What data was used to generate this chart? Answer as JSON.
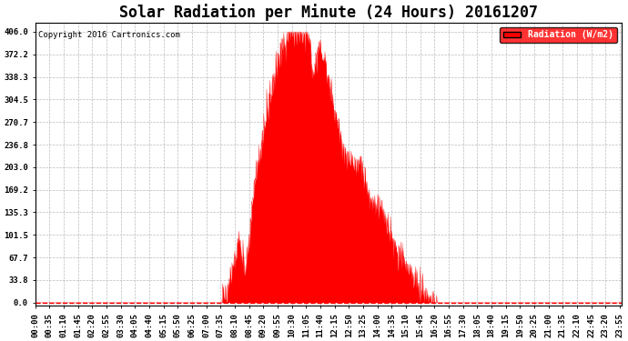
{
  "title": "Solar Radiation per Minute (24 Hours) 20161207",
  "copyright_text": "Copyright 2016 Cartronics.com",
  "legend_label": "Radiation (W/m2)",
  "yticks": [
    0.0,
    33.8,
    67.7,
    101.5,
    135.3,
    169.2,
    203.0,
    236.8,
    270.7,
    304.5,
    338.3,
    372.2,
    406.0
  ],
  "ymax": 420,
  "ymin": -5,
  "fill_color": "#ff0000",
  "line_color": "#ff0000",
  "legend_bg": "#ff0000",
  "legend_text_color": "#ffffff",
  "bg_color": "#ffffff",
  "grid_color": "#aaaaaa",
  "dashed_line_color": "#ff0000",
  "title_fontsize": 12,
  "tick_fontsize": 6.5,
  "n_points": 1440,
  "tick_interval_minutes": 35,
  "sunrise_minute": 455,
  "sunset_minute": 985
}
